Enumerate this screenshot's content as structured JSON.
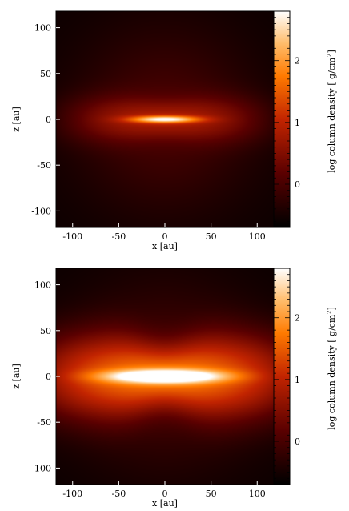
{
  "chart_data": [
    {
      "type": "heatmap",
      "xlabel": "x [au]",
      "ylabel": "z [au]",
      "xlim": [
        -118,
        118
      ],
      "ylim": [
        -118,
        118
      ],
      "xticks": [
        -100,
        -50,
        0,
        50,
        100
      ],
      "yticks": [
        -100,
        -50,
        0,
        50,
        100
      ],
      "colorbar": {
        "label": "log column density [ g/cm²]",
        "range": [
          -0.7,
          2.8
        ],
        "ticks": [
          0,
          1,
          2
        ],
        "colormap": "afmhot"
      },
      "field": {
        "peak": 2.1,
        "core_width": 26,
        "core_height": 2.6,
        "envelope_peak": 0.85,
        "envelope_width": 110,
        "envelope_height": 26,
        "waist": 0.18,
        "background": -0.6
      }
    },
    {
      "type": "heatmap",
      "xlabel": "x [au]",
      "ylabel": "z [au]",
      "xlim": [
        -118,
        118
      ],
      "ylim": [
        -118,
        118
      ],
      "xticks": [
        -100,
        -50,
        0,
        50,
        100
      ],
      "yticks": [
        -100,
        -50,
        0,
        50,
        100
      ],
      "colorbar": {
        "label": "log column density [ g/cm²]",
        "range": [
          -0.7,
          2.8
        ],
        "ticks": [
          0,
          1,
          2
        ],
        "colormap": "afmhot"
      },
      "field": {
        "peak": 2.3,
        "core_width": 45,
        "core_height": 5,
        "envelope_peak": 1.75,
        "envelope_width": 150,
        "envelope_height": 48,
        "waist": 0.28,
        "background": -0.6
      }
    }
  ]
}
